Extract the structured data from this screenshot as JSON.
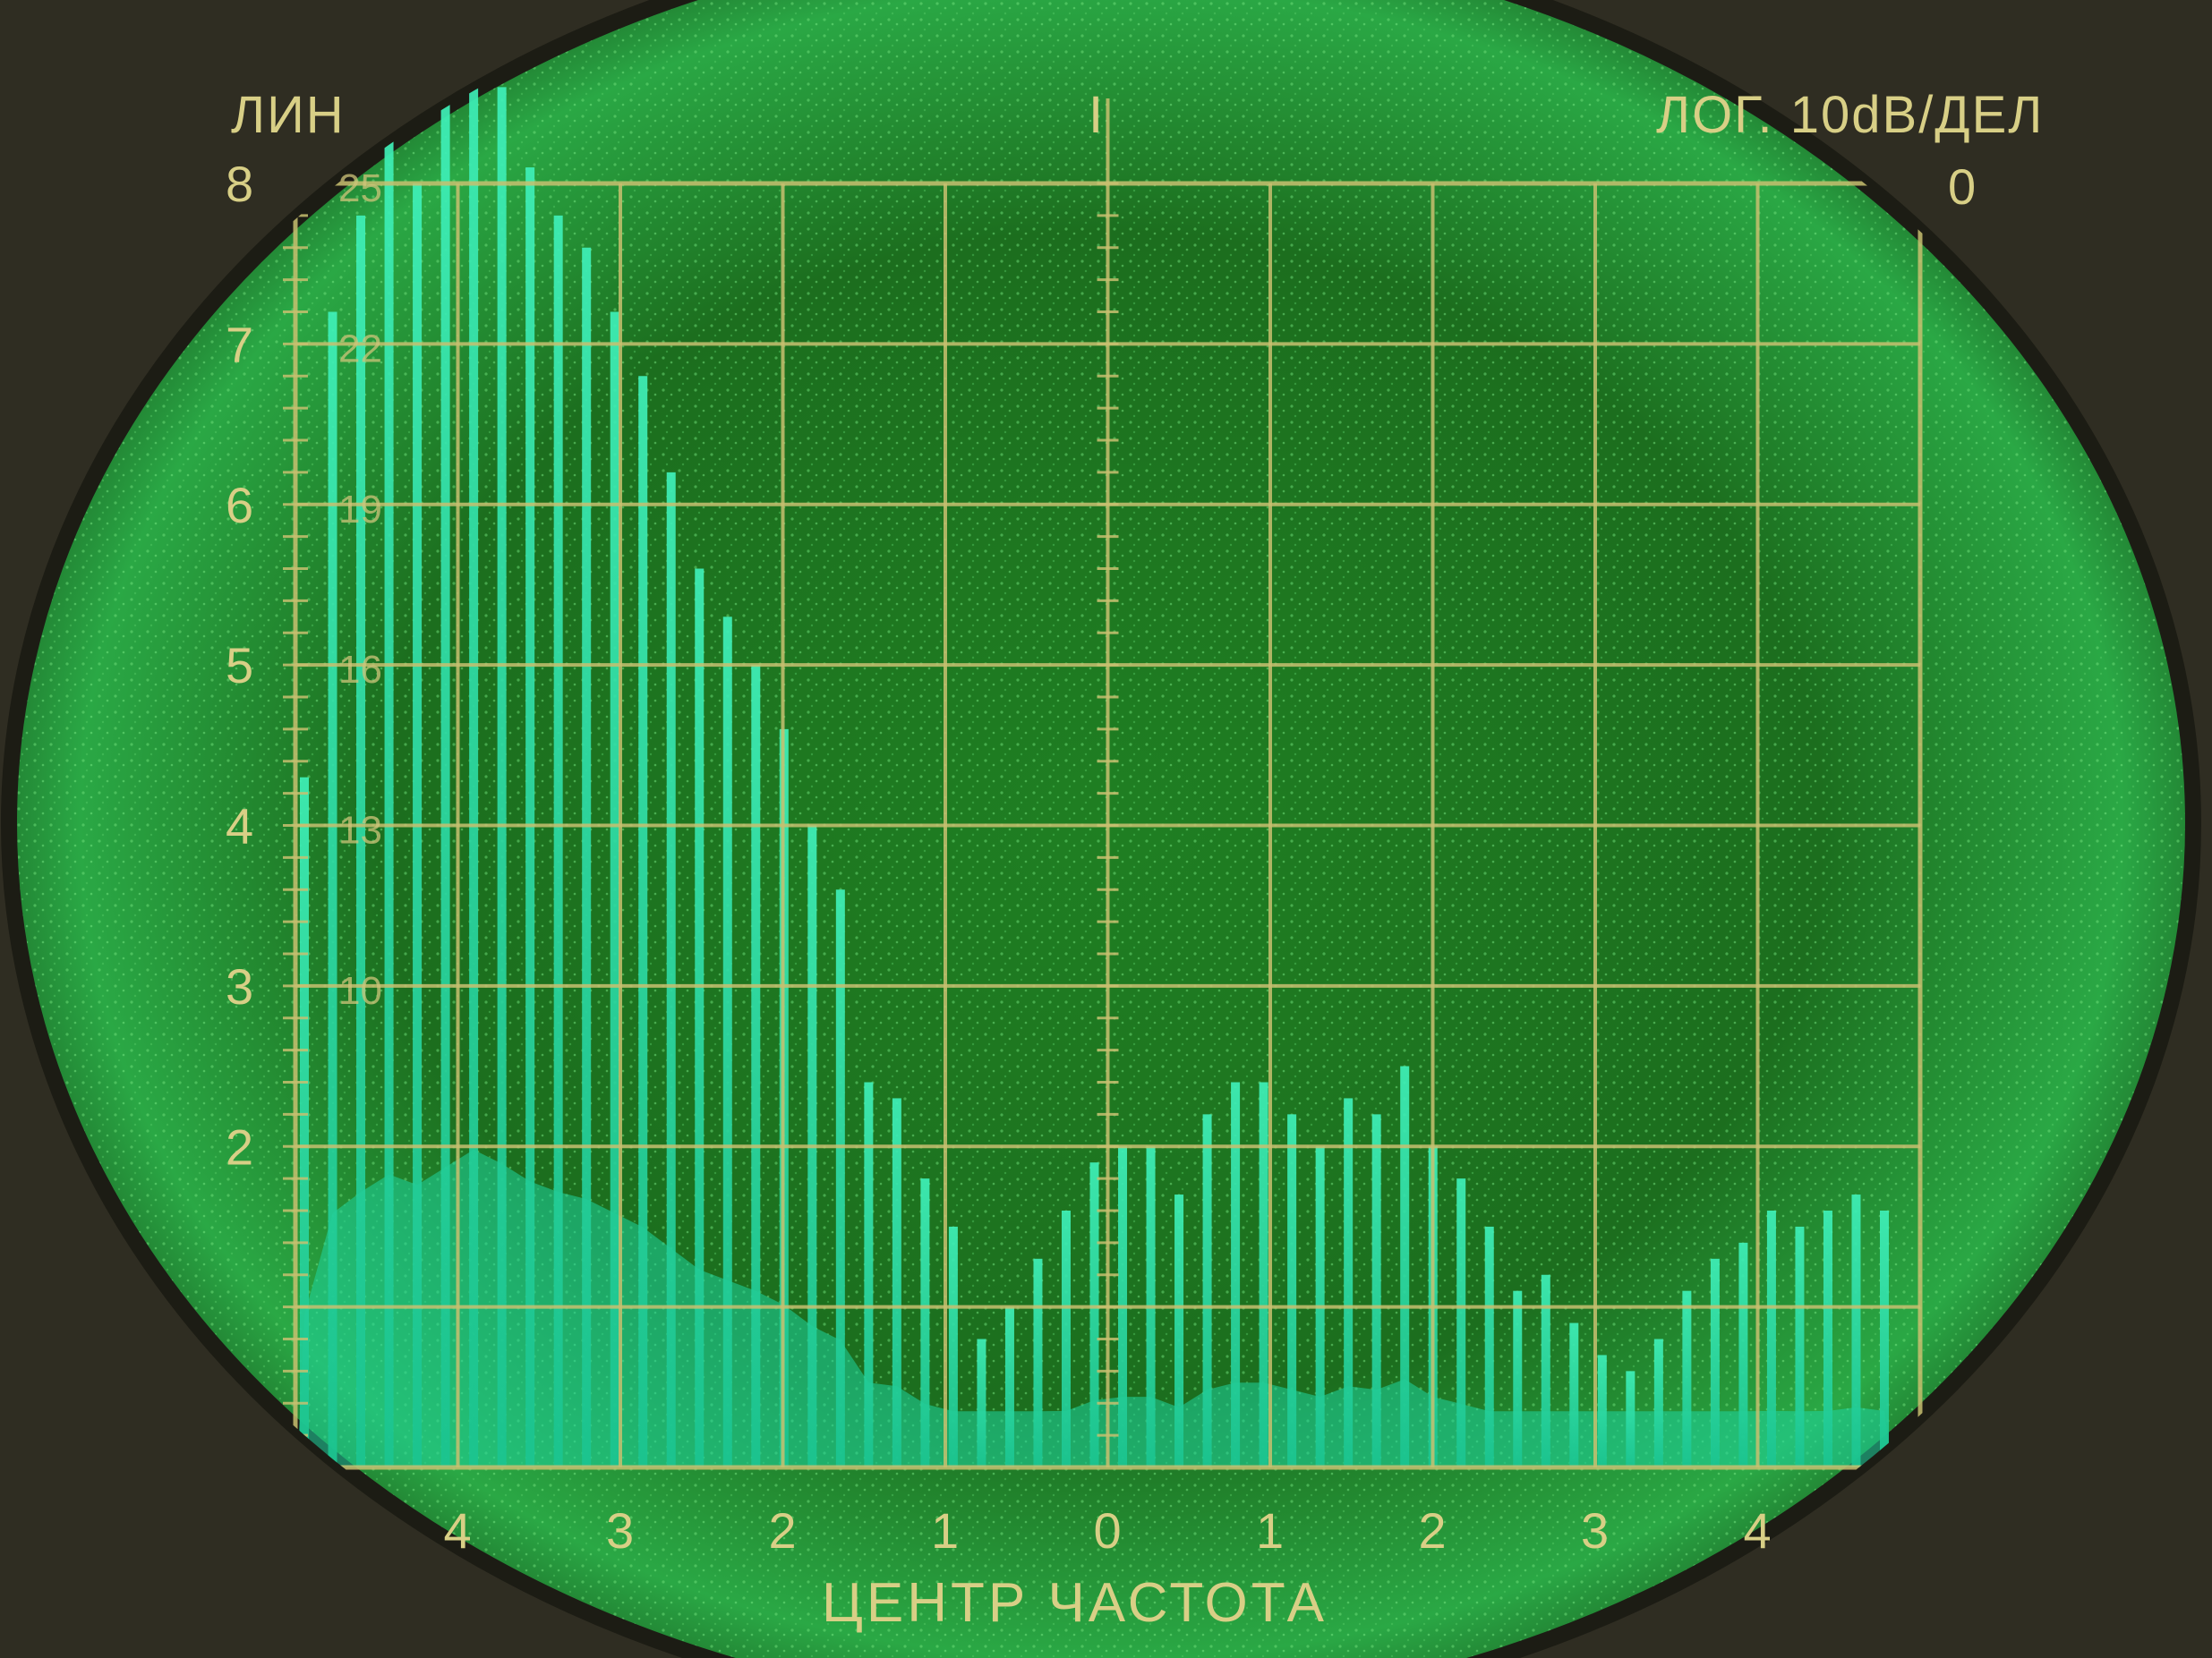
{
  "scene": {
    "kind": "spectrum analyzer CRT screen photograph",
    "colors": {
      "phosphor": "#1fd6a0",
      "screen_bg": "#1e8a2a",
      "graticule": "#c8c070",
      "bezel": "#2f2d22"
    }
  },
  "labels": {
    "left_top": "ЛИН",
    "right_top": "ЛОГ. 10dB/ДЕЛ",
    "right_zero": "0",
    "center_marker": "I",
    "bottom": "ЦЕНТР ЧАСТОТА"
  },
  "y_scale": [
    {
      "main": "8",
      "sub": "25"
    },
    {
      "main": "7",
      "sub": "22"
    },
    {
      "main": "6",
      "sub": "19"
    },
    {
      "main": "5",
      "sub": "16"
    },
    {
      "main": "4",
      "sub": "13"
    },
    {
      "main": "3",
      "sub": "10"
    },
    {
      "main": "2",
      "sub": ""
    }
  ],
  "x_scale": [
    "4",
    "3",
    "2",
    "1",
    "0",
    "1",
    "2",
    "3",
    "4"
  ],
  "spectrum": {
    "description": "comb of spectral lines, relative heights in graticule divisions (0-8)",
    "lines": [
      4.3,
      7.2,
      7.8,
      8.3,
      8.0,
      8.5,
      9.0,
      8.6,
      8.1,
      7.8,
      7.6,
      7.2,
      6.8,
      6.2,
      5.6,
      5.3,
      5.0,
      4.6,
      4.0,
      3.6,
      2.4,
      2.3,
      1.8,
      1.5,
      0.8,
      1.0,
      1.3,
      1.6,
      1.9,
      2.0,
      2.0,
      1.7,
      2.2,
      2.4,
      2.4,
      2.2,
      2.0,
      2.3,
      2.2,
      2.5,
      2.0,
      1.8,
      1.5,
      1.1,
      1.2,
      0.9,
      0.7,
      0.6,
      0.8,
      1.1,
      1.3,
      1.4,
      1.6,
      1.5,
      1.6,
      1.7,
      1.6
    ]
  }
}
